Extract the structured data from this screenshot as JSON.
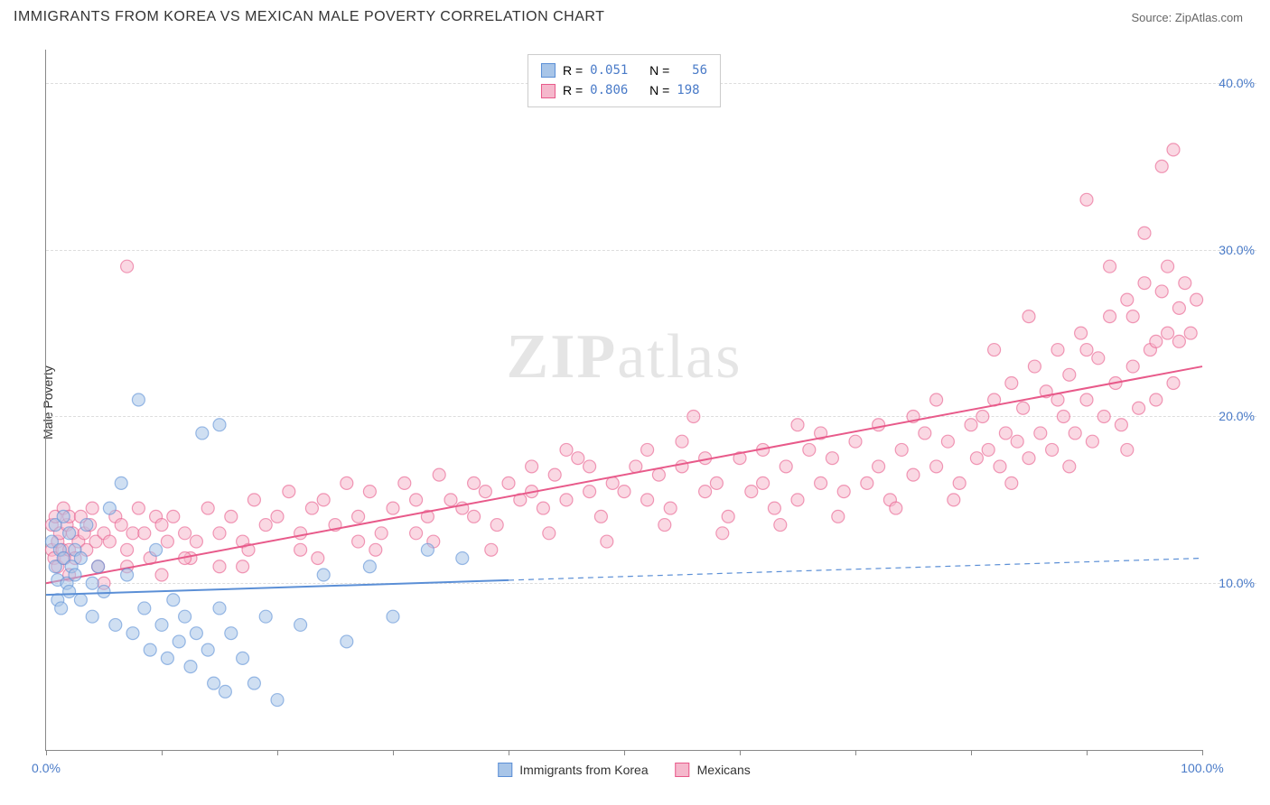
{
  "title": "IMMIGRANTS FROM KOREA VS MEXICAN MALE POVERTY CORRELATION CHART",
  "source": "Source: ZipAtlas.com",
  "y_axis_label": "Male Poverty",
  "watermark": {
    "part1": "ZIP",
    "part2": "atlas"
  },
  "chart": {
    "type": "scatter",
    "background_color": "#ffffff",
    "grid_color": "#dddddd",
    "axis_color": "#888888",
    "tick_label_color": "#4a7bc8",
    "xlim": [
      0,
      100
    ],
    "ylim": [
      0,
      42
    ],
    "x_ticks": [
      0,
      10,
      20,
      30,
      40,
      50,
      60,
      70,
      80,
      90,
      100
    ],
    "x_tick_labels": {
      "0": "0.0%",
      "100": "100.0%"
    },
    "y_ticks": [
      10,
      20,
      30,
      40
    ],
    "y_tick_labels": [
      "10.0%",
      "20.0%",
      "30.0%",
      "40.0%"
    ],
    "marker_radius": 7,
    "marker_fill_opacity": 0.25,
    "marker_stroke_width": 1.2,
    "line_width": 2
  },
  "series": {
    "korea": {
      "label": "Immigrants from Korea",
      "color": "#5b8fd6",
      "fill": "#a8c5e8",
      "R": "0.051",
      "N": "56",
      "trend": {
        "x1": 0,
        "y1": 9.3,
        "x2": 100,
        "y2": 11.5,
        "solid_until_x": 40
      },
      "points": [
        [
          0.5,
          12.5
        ],
        [
          0.8,
          11.0
        ],
        [
          0.8,
          13.5
        ],
        [
          1.0,
          10.2
        ],
        [
          1.0,
          9.0
        ],
        [
          1.2,
          12.0
        ],
        [
          1.3,
          8.5
        ],
        [
          1.5,
          14.0
        ],
        [
          1.5,
          11.5
        ],
        [
          1.8,
          10.0
        ],
        [
          2.0,
          13.0
        ],
        [
          2.0,
          9.5
        ],
        [
          2.2,
          11.0
        ],
        [
          2.5,
          10.5
        ],
        [
          2.5,
          12.0
        ],
        [
          3.0,
          11.5
        ],
        [
          3.0,
          9.0
        ],
        [
          3.5,
          13.5
        ],
        [
          4.0,
          10.0
        ],
        [
          4.0,
          8.0
        ],
        [
          4.5,
          11.0
        ],
        [
          5.0,
          9.5
        ],
        [
          5.5,
          14.5
        ],
        [
          6.0,
          7.5
        ],
        [
          6.5,
          16.0
        ],
        [
          7.0,
          10.5
        ],
        [
          7.5,
          7.0
        ],
        [
          8.0,
          21.0
        ],
        [
          8.5,
          8.5
        ],
        [
          9.0,
          6.0
        ],
        [
          9.5,
          12.0
        ],
        [
          10.0,
          7.5
        ],
        [
          10.5,
          5.5
        ],
        [
          11.0,
          9.0
        ],
        [
          11.5,
          6.5
        ],
        [
          12.0,
          8.0
        ],
        [
          12.5,
          5.0
        ],
        [
          13.0,
          7.0
        ],
        [
          13.5,
          19.0
        ],
        [
          14.0,
          6.0
        ],
        [
          14.5,
          4.0
        ],
        [
          15.0,
          8.5
        ],
        [
          15.0,
          19.5
        ],
        [
          15.5,
          3.5
        ],
        [
          16.0,
          7.0
        ],
        [
          17.0,
          5.5
        ],
        [
          18.0,
          4.0
        ],
        [
          19.0,
          8.0
        ],
        [
          20.0,
          3.0
        ],
        [
          22.0,
          7.5
        ],
        [
          24.0,
          10.5
        ],
        [
          26.0,
          6.5
        ],
        [
          28.0,
          11.0
        ],
        [
          30.0,
          8.0
        ],
        [
          33.0,
          12.0
        ],
        [
          36.0,
          11.5
        ]
      ]
    },
    "mexicans": {
      "label": "Mexicans",
      "color": "#e85a8a",
      "fill": "#f5b8cc",
      "R": "0.806",
      "N": "198",
      "trend": {
        "x1": 0,
        "y1": 10.0,
        "x2": 100,
        "y2": 23.0,
        "solid_until_x": 100
      },
      "points": [
        [
          0.5,
          12.0
        ],
        [
          0.5,
          13.5
        ],
        [
          0.7,
          11.5
        ],
        [
          0.8,
          14.0
        ],
        [
          1.0,
          12.5
        ],
        [
          1.0,
          11.0
        ],
        [
          1.2,
          13.0
        ],
        [
          1.4,
          12.0
        ],
        [
          1.5,
          14.5
        ],
        [
          1.6,
          11.5
        ],
        [
          1.8,
          13.5
        ],
        [
          2.0,
          12.0
        ],
        [
          2.0,
          14.0
        ],
        [
          2.3,
          13.0
        ],
        [
          2.5,
          11.5
        ],
        [
          2.8,
          12.5
        ],
        [
          3.0,
          14.0
        ],
        [
          3.3,
          13.0
        ],
        [
          3.5,
          12.0
        ],
        [
          3.8,
          13.5
        ],
        [
          4.0,
          14.5
        ],
        [
          4.3,
          12.5
        ],
        [
          4.5,
          11.0
        ],
        [
          5.0,
          13.0
        ],
        [
          5.5,
          12.5
        ],
        [
          6.0,
          14.0
        ],
        [
          6.5,
          13.5
        ],
        [
          7.0,
          12.0
        ],
        [
          7.5,
          13.0
        ],
        [
          8.0,
          14.5
        ],
        [
          8.5,
          13.0
        ],
        [
          9.0,
          11.5
        ],
        [
          9.5,
          14.0
        ],
        [
          10.0,
          13.5
        ],
        [
          10.5,
          12.5
        ],
        [
          11.0,
          14.0
        ],
        [
          12.0,
          13.0
        ],
        [
          13.0,
          12.5
        ],
        [
          14.0,
          14.5
        ],
        [
          15.0,
          13.0
        ],
        [
          16.0,
          14.0
        ],
        [
          17.0,
          12.5
        ],
        [
          18.0,
          15.0
        ],
        [
          19.0,
          13.5
        ],
        [
          20.0,
          14.0
        ],
        [
          21.0,
          15.5
        ],
        [
          22.0,
          13.0
        ],
        [
          23.0,
          14.5
        ],
        [
          24.0,
          15.0
        ],
        [
          25.0,
          13.5
        ],
        [
          26.0,
          16.0
        ],
        [
          27.0,
          14.0
        ],
        [
          28.0,
          15.5
        ],
        [
          29.0,
          13.0
        ],
        [
          30.0,
          14.5
        ],
        [
          31.0,
          16.0
        ],
        [
          32.0,
          15.0
        ],
        [
          33.0,
          14.0
        ],
        [
          34.0,
          16.5
        ],
        [
          35.0,
          15.0
        ],
        [
          36.0,
          14.5
        ],
        [
          37.0,
          16.0
        ],
        [
          38.0,
          15.5
        ],
        [
          39.0,
          13.5
        ],
        [
          40.0,
          16.0
        ],
        [
          41.0,
          15.0
        ],
        [
          42.0,
          17.0
        ],
        [
          43.0,
          14.5
        ],
        [
          44.0,
          16.5
        ],
        [
          45.0,
          15.0
        ],
        [
          46.0,
          17.5
        ],
        [
          47.0,
          15.5
        ],
        [
          48.0,
          14.0
        ],
        [
          49.0,
          16.0
        ],
        [
          50.0,
          15.5
        ],
        [
          51.0,
          17.0
        ],
        [
          52.0,
          15.0
        ],
        [
          53.0,
          16.5
        ],
        [
          54.0,
          14.5
        ],
        [
          55.0,
          17.0
        ],
        [
          56.0,
          20.0
        ],
        [
          57.0,
          15.5
        ],
        [
          58.0,
          16.0
        ],
        [
          59.0,
          14.0
        ],
        [
          60.0,
          17.5
        ],
        [
          61.0,
          15.5
        ],
        [
          62.0,
          16.0
        ],
        [
          63.0,
          14.5
        ],
        [
          64.0,
          17.0
        ],
        [
          65.0,
          15.0
        ],
        [
          66.0,
          18.0
        ],
        [
          67.0,
          16.0
        ],
        [
          68.0,
          17.5
        ],
        [
          69.0,
          15.5
        ],
        [
          70.0,
          18.5
        ],
        [
          71.0,
          16.0
        ],
        [
          72.0,
          17.0
        ],
        [
          73.0,
          15.0
        ],
        [
          74.0,
          18.0
        ],
        [
          75.0,
          16.5
        ],
        [
          76.0,
          19.0
        ],
        [
          77.0,
          17.0
        ],
        [
          78.0,
          18.5
        ],
        [
          79.0,
          16.0
        ],
        [
          80.0,
          19.5
        ],
        [
          80.5,
          17.5
        ],
        [
          81.0,
          20.0
        ],
        [
          81.5,
          18.0
        ],
        [
          82.0,
          21.0
        ],
        [
          82.5,
          17.0
        ],
        [
          83.0,
          19.0
        ],
        [
          83.5,
          22.0
        ],
        [
          84.0,
          18.5
        ],
        [
          84.5,
          20.5
        ],
        [
          85.0,
          17.5
        ],
        [
          85.5,
          23.0
        ],
        [
          86.0,
          19.0
        ],
        [
          86.5,
          21.5
        ],
        [
          87.0,
          18.0
        ],
        [
          87.5,
          24.0
        ],
        [
          88.0,
          20.0
        ],
        [
          88.5,
          22.5
        ],
        [
          89.0,
          19.0
        ],
        [
          89.5,
          25.0
        ],
        [
          90.0,
          21.0
        ],
        [
          90.0,
          33.0
        ],
        [
          90.5,
          18.5
        ],
        [
          91.0,
          23.5
        ],
        [
          91.5,
          20.0
        ],
        [
          92.0,
          26.0
        ],
        [
          92.5,
          22.0
        ],
        [
          93.0,
          19.5
        ],
        [
          93.5,
          27.0
        ],
        [
          94.0,
          23.0
        ],
        [
          94.5,
          20.5
        ],
        [
          95.0,
          28.0
        ],
        [
          95.0,
          31.0
        ],
        [
          95.5,
          24.0
        ],
        [
          96.0,
          21.0
        ],
        [
          96.5,
          27.5
        ],
        [
          96.5,
          35.0
        ],
        [
          97.0,
          25.0
        ],
        [
          97.0,
          29.0
        ],
        [
          97.5,
          22.0
        ],
        [
          97.5,
          36.0
        ],
        [
          98.0,
          26.5
        ],
        [
          98.0,
          24.5
        ],
        [
          98.5,
          28.0
        ],
        [
          99.0,
          25.0
        ],
        [
          99.5,
          27.0
        ],
        [
          7.0,
          29.0
        ],
        [
          12.5,
          11.5
        ],
        [
          17.5,
          12.0
        ],
        [
          23.5,
          11.5
        ],
        [
          28.5,
          12.0
        ],
        [
          33.5,
          12.5
        ],
        [
          38.5,
          12.0
        ],
        [
          43.5,
          13.0
        ],
        [
          48.5,
          12.5
        ],
        [
          53.5,
          13.5
        ],
        [
          58.5,
          13.0
        ],
        [
          63.5,
          13.5
        ],
        [
          68.5,
          14.0
        ],
        [
          73.5,
          14.5
        ],
        [
          78.5,
          15.0
        ],
        [
          83.5,
          16.0
        ],
        [
          88.5,
          17.0
        ],
        [
          93.5,
          18.0
        ],
        [
          45.0,
          18.0
        ],
        [
          55.0,
          18.5
        ],
        [
          65.0,
          19.5
        ],
        [
          75.0,
          20.0
        ],
        [
          85.0,
          26.0
        ],
        [
          90.0,
          24.0
        ],
        [
          92.0,
          29.0
        ],
        [
          94.0,
          26.0
        ],
        [
          96.0,
          24.5
        ],
        [
          87.5,
          21.0
        ],
        [
          82.0,
          24.0
        ],
        [
          77.0,
          21.0
        ],
        [
          72.0,
          19.5
        ],
        [
          67.0,
          19.0
        ],
        [
          62.0,
          18.0
        ],
        [
          57.0,
          17.5
        ],
        [
          52.0,
          18.0
        ],
        [
          47.0,
          17.0
        ],
        [
          42.0,
          15.5
        ],
        [
          37.0,
          14.0
        ],
        [
          32.0,
          13.0
        ],
        [
          27.0,
          12.5
        ],
        [
          22.0,
          12.0
        ],
        [
          17.0,
          11.0
        ],
        [
          12.0,
          11.5
        ],
        [
          7.0,
          11.0
        ],
        [
          2.0,
          10.5
        ],
        [
          5.0,
          10.0
        ],
        [
          10.0,
          10.5
        ],
        [
          15.0,
          11.0
        ]
      ]
    }
  },
  "legend_stats_labels": {
    "r": "R  =",
    "n": "N  ="
  }
}
